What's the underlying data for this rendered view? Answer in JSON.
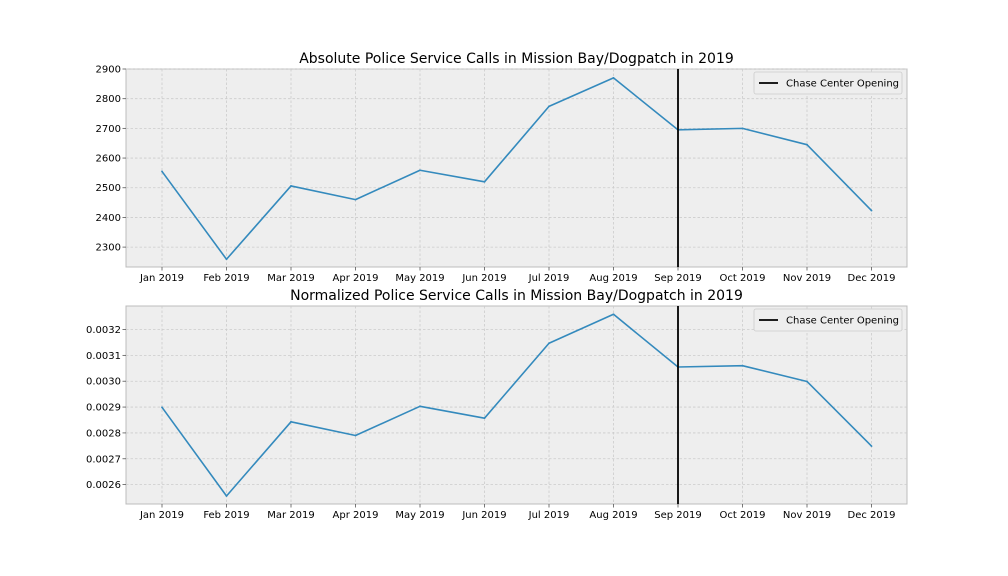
{
  "chart_data": [
    {
      "type": "line",
      "title": "Absolute Police Service Calls in Mission Bay/Dogpatch in 2019",
      "x": [
        "Jan 2019",
        "Feb 2019",
        "Mar 2019",
        "Apr 2019",
        "May 2019",
        "Jun 2019",
        "Jul 2019",
        "Aug 2019",
        "Sep 2019",
        "Oct 2019",
        "Nov 2019",
        "Dec 2019"
      ],
      "series": [
        {
          "values": [
            2555,
            2259,
            2506,
            2460,
            2559,
            2520,
            2774,
            2870,
            2695,
            2700,
            2645,
            2423
          ],
          "color": "#348abd"
        }
      ],
      "ylim": [
        2233,
        2900
      ],
      "yticks": [
        2300,
        2400,
        2500,
        2600,
        2700,
        2800,
        2900
      ],
      "ytick_labels": [
        "2300",
        "2400",
        "2500",
        "2600",
        "2700",
        "2800",
        "2900"
      ],
      "vline": {
        "x": "Sep 2019",
        "label": "Chase Center Opening",
        "color": "#000000"
      },
      "legend": "top-right",
      "grid": true
    },
    {
      "type": "line",
      "title": "Normalized Police Service Calls in Mission Bay/Dogpatch in 2019",
      "x": [
        "Jan 2019",
        "Feb 2019",
        "Mar 2019",
        "Apr 2019",
        "May 2019",
        "Jun 2019",
        "Jul 2019",
        "Aug 2019",
        "Sep 2019",
        "Oct 2019",
        "Nov 2019",
        "Dec 2019"
      ],
      "series": [
        {
          "values": [
            0.002899,
            0.002556,
            0.002843,
            0.00279,
            0.002903,
            0.002857,
            0.003147,
            0.003259,
            0.003055,
            0.00306,
            0.002999,
            0.002749
          ],
          "color": "#348abd"
        }
      ],
      "ylim": [
        0.002525,
        0.003291
      ],
      "yticks": [
        0.0026,
        0.0027,
        0.0028,
        0.0029,
        0.003,
        0.0031,
        0.0032
      ],
      "ytick_labels": [
        "0.0026",
        "0.0027",
        "0.0028",
        "0.0029",
        "0.0030",
        "0.0031",
        "0.0032"
      ],
      "vline": {
        "x": "Sep 2019",
        "label": "Chase Center Opening",
        "color": "#000000"
      },
      "legend": "top-right",
      "grid": true
    }
  ]
}
